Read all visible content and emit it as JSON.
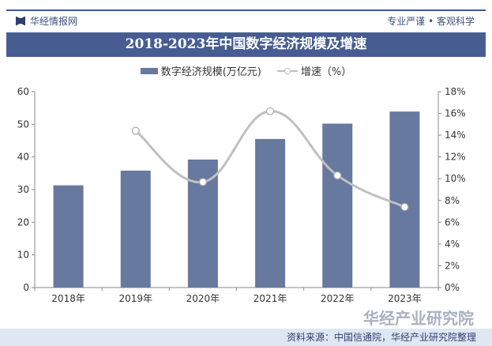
{
  "header": {
    "brand": "华经情报网",
    "slogan": "专业严谨 • 客观科学"
  },
  "footer": {
    "source": "资料来源：中国信通院，华经产业研究院整理"
  },
  "watermark": "华经产业研究院",
  "chart_data": {
    "type": "bar",
    "title": "2018-2023年中国数字经济规模及增速",
    "categories": [
      "2018年",
      "2019年",
      "2020年",
      "2021年",
      "2022年",
      "2023年"
    ],
    "series": [
      {
        "name": "数字经济规模(万亿元)",
        "type": "bar",
        "axis": "left",
        "values": [
          31.3,
          35.8,
          39.2,
          45.5,
          50.2,
          53.9
        ],
        "color": "#68799f"
      },
      {
        "name": "增速（%）",
        "type": "line",
        "axis": "right",
        "smooth": true,
        "values": [
          null,
          14.4,
          9.7,
          16.2,
          10.3,
          7.4
        ],
        "color": "#c0c0c0"
      }
    ],
    "ylim": [
      0,
      60
    ],
    "yticks": [
      "0",
      "10",
      "20",
      "30",
      "40",
      "50",
      "60"
    ],
    "y2lim": [
      0,
      18
    ],
    "y2ticks": [
      "0%",
      "2%",
      "4%",
      "6%",
      "8%",
      "10%",
      "12%",
      "14%",
      "16%",
      "18%"
    ],
    "legend": "top",
    "grid": false
  }
}
